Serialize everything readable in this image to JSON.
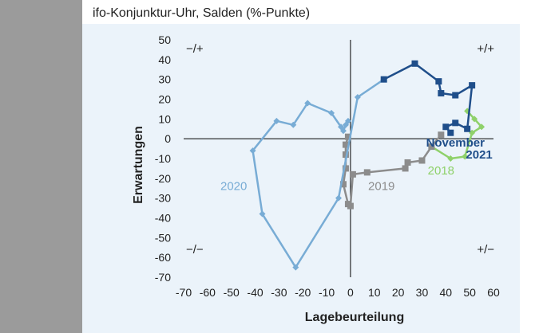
{
  "chart_data": {
    "type": "line",
    "title": "ifo-Konjunktur-Uhr, Salden (%-Punkte)",
    "xlabel": "Lagebeurteilung",
    "ylabel": "Erwartungen",
    "xlim": [
      -70,
      60
    ],
    "ylim": [
      -70,
      50
    ],
    "xticks": [
      -70,
      -60,
      -50,
      -40,
      -30,
      -20,
      -10,
      0,
      10,
      20,
      30,
      40,
      50,
      60
    ],
    "yticks": [
      50,
      40,
      30,
      20,
      10,
      0,
      -10,
      -20,
      -30,
      -40,
      -50,
      -60,
      -70
    ],
    "quadrants": {
      "top_left": "−/+",
      "top_right": "+/+",
      "bottom_left": "−/−",
      "bottom_right": "+/−"
    },
    "series": [
      {
        "name": "2018",
        "color": "#8fd16a",
        "marker": "diamond",
        "points": [
          [
            49,
            14
          ],
          [
            52,
            10
          ],
          [
            55,
            6
          ],
          [
            51,
            3
          ],
          [
            48,
            -9
          ],
          [
            42,
            -10
          ],
          [
            34,
            -4
          ]
        ]
      },
      {
        "name": "2019",
        "color": "#8c8c8c",
        "marker": "square",
        "points": [
          [
            38,
            2
          ],
          [
            34,
            -4
          ],
          [
            30,
            -11
          ],
          [
            24,
            -12
          ],
          [
            23,
            -15
          ],
          [
            7,
            -17
          ],
          [
            1,
            -18
          ],
          [
            0,
            -34
          ],
          [
            -1,
            -33
          ],
          [
            -3,
            -23
          ],
          [
            -2,
            -15
          ],
          [
            -2,
            -8
          ],
          [
            -2,
            -3
          ],
          [
            -1,
            1
          ]
        ]
      },
      {
        "name": "2020",
        "color": "#78acd5",
        "marker": "diamond",
        "points": [
          [
            -1,
            9
          ],
          [
            -2,
            7
          ],
          [
            -3,
            4
          ],
          [
            -4,
            6
          ],
          [
            -8,
            13
          ],
          [
            -18,
            18
          ],
          [
            -24,
            7
          ],
          [
            -31,
            9
          ],
          [
            -41,
            -6
          ],
          [
            -37,
            -38
          ],
          [
            -23,
            -65
          ],
          [
            -5,
            -30
          ],
          [
            3,
            21
          ],
          [
            14,
            30
          ]
        ]
      },
      {
        "name": "2021",
        "color": "#1f4e8a",
        "marker": "square",
        "points": [
          [
            14,
            30
          ],
          [
            27,
            38
          ],
          [
            37,
            29
          ],
          [
            38,
            23
          ],
          [
            44,
            22
          ],
          [
            51,
            27
          ],
          [
            49,
            5
          ],
          [
            44,
            8
          ],
          [
            40,
            6
          ],
          [
            42,
            3
          ]
        ]
      }
    ],
    "annotations": [
      {
        "text": "2020",
        "x": -49,
        "y": -26,
        "color": "#78acd5"
      },
      {
        "text": "2019",
        "x": 13,
        "y": -26,
        "color": "#8c8c8c"
      },
      {
        "text": "2018",
        "x": 38,
        "y": -18,
        "color": "#8fd16a"
      },
      {
        "text": "November",
        "x": 44,
        "y": -4,
        "color": "#1f4e8a"
      },
      {
        "text": "2021",
        "x": 54,
        "y": -10,
        "color": "#1f4e8a"
      }
    ]
  }
}
